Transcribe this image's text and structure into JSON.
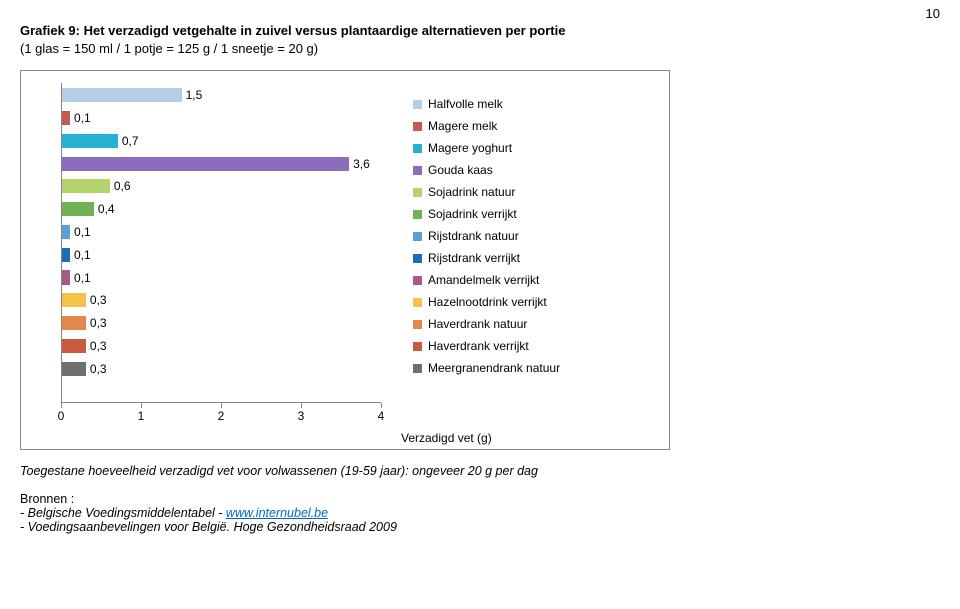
{
  "page_number": "10",
  "title_bold": "Grafiek 9: Het verzadigd vetgehalte in zuivel versus plantaardige alternatieven per portie",
  "title_sub": "(1 glas = 150 ml / 1 potje = 125 g / 1 sneetje = 20 g)",
  "chart": {
    "type": "bar",
    "orientation": "horizontal",
    "x_axis_title": "Verzadigd vet (g)",
    "xlim": [
      0,
      4
    ],
    "xticks": [
      0,
      1,
      2,
      3,
      4
    ],
    "background": "#ffffff",
    "border_color": "#888888",
    "label_fontsize": 12,
    "bars": [
      {
        "name": "Halfvolle melk",
        "value": 1.5,
        "label": "1,5",
        "color": "#b6cde8"
      },
      {
        "name": "Magere melk",
        "value": 0.1,
        "label": "0,1",
        "color": "#c35b53"
      },
      {
        "name": "Magere yoghurt",
        "value": 0.7,
        "label": "0,7",
        "color": "#25b0d4"
      },
      {
        "name": "Gouda kaas",
        "value": 3.6,
        "label": "3,6",
        "color": "#8a6bbd"
      },
      {
        "name": "Sojadrink natuur",
        "value": 0.6,
        "label": "0,6",
        "color": "#b5d26b"
      },
      {
        "name": "Sojadrink verrijkt",
        "value": 0.4,
        "label": "0,4",
        "color": "#71b158"
      },
      {
        "name": "Rijstdrank natuur",
        "value": 0.1,
        "label": "0,1",
        "color": "#5aa2d6"
      },
      {
        "name": "Rijstdrank verrijkt",
        "value": 0.1,
        "label": "0,1",
        "color": "#1b6db5"
      },
      {
        "name": "Amandelmelk verrijkt",
        "value": 0.1,
        "label": "0,1",
        "color": "#a65c88"
      },
      {
        "name": "Hazelnootdrink verrijkt",
        "value": 0.3,
        "label": "0,3",
        "color": "#f6c24a"
      },
      {
        "name": "Haverdrank natuur",
        "value": 0.3,
        "label": "0,3",
        "color": "#e3874d"
      },
      {
        "name": "Haverdrank verrijkt",
        "value": 0.3,
        "label": "0,3",
        "color": "#c85a40"
      },
      {
        "name": "Meergranendrank natuur",
        "value": 0.3,
        "label": "0,3",
        "color": "#6f6f6f"
      }
    ]
  },
  "note": "Toegestane hoeveelheid verzadigd vet voor volwassenen (19-59 jaar): ongeveer 20 g per dag",
  "sources_label": "Bronnen :",
  "source1_prefix": "- Belgische Voedingsmiddelentabel - ",
  "source1_link": "www.internubel.be",
  "source2": "- Voedingsaanbevelingen voor België. Hoge Gezondheidsraad 2009"
}
